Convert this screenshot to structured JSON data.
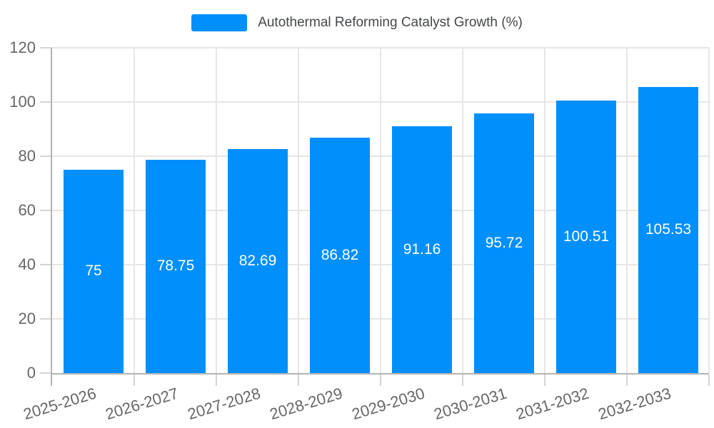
{
  "chart_data": {
    "type": "bar",
    "title": "Autothermal Reforming Catalyst Growth (%)",
    "categories": [
      "2025-2026",
      "2026-2027",
      "2027-2028",
      "2028-2029",
      "2029-2030",
      "2030-2031",
      "2031-2032",
      "2032-2033"
    ],
    "values": [
      75,
      78.75,
      82.69,
      86.82,
      91.16,
      95.72,
      100.51,
      105.53
    ],
    "value_labels": [
      "75",
      "78.75",
      "82.69",
      "86.82",
      "91.16",
      "95.72",
      "100.51",
      "105.53"
    ],
    "xlabel": "",
    "ylabel": "",
    "ylim": [
      0,
      120
    ],
    "yticks": [
      0,
      20,
      40,
      60,
      80,
      100,
      120
    ],
    "grid": true,
    "legend_position": "top"
  },
  "colors": {
    "bar": "#008FFB",
    "grid": "#e6e6e6",
    "axis_line": "#b3b3b3",
    "tick": "#d4d4d4",
    "axis_label": "#666666",
    "legend_label": "#44474a",
    "value_label": "#ffffff",
    "background": "#ffffff"
  }
}
